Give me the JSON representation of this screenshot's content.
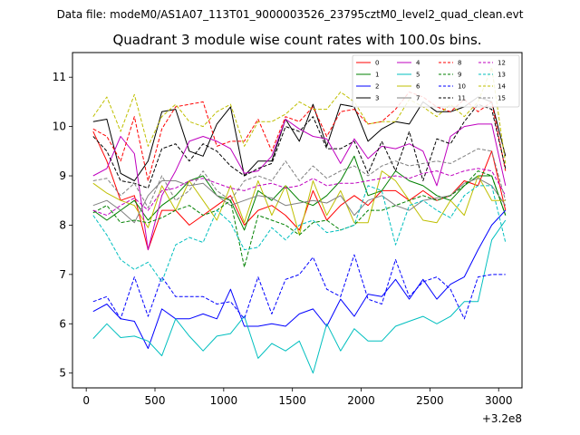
{
  "chart_data": {
    "type": "line",
    "suptitle": "Data file: modeM0/AS1A07_113T01_9000003526_23795cztM0_level2_quad_clean.evt",
    "title": "Quadrant 3 module wise count rates with 100.0s bins.",
    "xlabel": "",
    "ylabel": "",
    "x_offset_label": "+3.2e8",
    "xlim": [
      -100,
      3170
    ],
    "ylim": [
      4.7,
      11.5
    ],
    "xticks": [
      0,
      500,
      1000,
      1500,
      2000,
      2500,
      3000
    ],
    "yticks": [
      5,
      6,
      7,
      8,
      9,
      10,
      11
    ],
    "legend_position": "upper-right",
    "x": [
      50,
      150,
      250,
      350,
      450,
      550,
      650,
      750,
      850,
      950,
      1050,
      1150,
      1250,
      1350,
      1450,
      1550,
      1650,
      1750,
      1850,
      1950,
      2050,
      2150,
      2250,
      2350,
      2450,
      2550,
      2650,
      2750,
      2850,
      2950,
      3050
    ],
    "series": [
      {
        "name": "0",
        "color": "#ff0000",
        "dash": "solid",
        "values": [
          9.9,
          9.3,
          8.5,
          8.6,
          7.5,
          8.3,
          8.3,
          8.0,
          8.2,
          8.4,
          8.6,
          8.0,
          8.3,
          8.4,
          8.2,
          7.9,
          8.7,
          8.1,
          8.4,
          8.6,
          8.4,
          8.7,
          8.7,
          8.5,
          8.7,
          8.5,
          8.6,
          8.9,
          8.8,
          9.5,
          8.3
        ]
      },
      {
        "name": "1",
        "color": "#008000",
        "dash": "solid",
        "values": [
          8.3,
          8.1,
          8.3,
          8.5,
          8.1,
          8.4,
          8.6,
          8.9,
          9.0,
          8.6,
          8.5,
          7.9,
          8.7,
          8.5,
          8.8,
          8.5,
          8.4,
          8.6,
          8.9,
          9.4,
          8.6,
          8.7,
          9.1,
          8.9,
          8.8,
          8.6,
          8.5,
          8.8,
          9.0,
          9.0,
          8.2
        ]
      },
      {
        "name": "2",
        "color": "#0000ff",
        "dash": "solid",
        "values": [
          6.25,
          6.4,
          6.1,
          6.05,
          5.5,
          6.3,
          6.1,
          6.1,
          6.2,
          6.1,
          6.7,
          5.95,
          5.95,
          6.0,
          5.95,
          6.2,
          6.3,
          5.95,
          6.5,
          6.15,
          6.6,
          6.55,
          6.9,
          6.5,
          6.9,
          6.5,
          6.8,
          6.95,
          7.5,
          8.0,
          8.3
        ]
      },
      {
        "name": "3",
        "color": "#000000",
        "dash": "solid",
        "values": [
          10.1,
          10.15,
          9.05,
          8.9,
          9.3,
          10.3,
          10.35,
          9.5,
          9.4,
          10.05,
          10.4,
          9.0,
          9.3,
          9.3,
          10.15,
          9.7,
          10.45,
          9.6,
          10.45,
          10.4,
          9.7,
          9.95,
          10.1,
          10.05,
          10.5,
          10.3,
          10.3,
          10.4,
          10.6,
          10.5,
          9.4
        ]
      },
      {
        "name": "4",
        "color": "#bf00bf",
        "dash": "solid",
        "values": [
          9.0,
          9.15,
          9.8,
          9.45,
          7.5,
          8.6,
          9.1,
          9.7,
          9.8,
          9.7,
          9.55,
          9.05,
          9.1,
          9.4,
          10.15,
          9.95,
          9.8,
          9.75,
          9.25,
          9.75,
          9.35,
          9.6,
          9.55,
          9.65,
          9.5,
          8.8,
          9.8,
          10.0,
          10.05,
          10.05,
          8.8
        ]
      },
      {
        "name": "5",
        "color": "#00bfbf",
        "dash": "solid",
        "values": [
          5.7,
          6.0,
          5.72,
          5.75,
          5.65,
          5.35,
          6.1,
          5.75,
          5.45,
          5.75,
          5.8,
          6.15,
          5.3,
          5.6,
          5.45,
          5.65,
          5.0,
          6.0,
          5.45,
          5.9,
          5.65,
          5.65,
          5.95,
          6.05,
          6.15,
          6.0,
          6.15,
          6.45,
          6.45,
          7.7,
          8.1
        ]
      },
      {
        "name": "6",
        "color": "#bfbf00",
        "dash": "solid",
        "values": [
          8.85,
          8.65,
          8.5,
          8.4,
          7.95,
          8.8,
          8.3,
          8.9,
          8.5,
          8.1,
          8.8,
          8.05,
          8.9,
          8.2,
          8.8,
          7.8,
          8.9,
          8.2,
          8.7,
          8.05,
          8.05,
          9.1,
          8.9,
          8.5,
          8.1,
          8.05,
          8.5,
          8.2,
          9.0,
          8.5,
          8.5
        ]
      },
      {
        "name": "7",
        "color": "#808080",
        "dash": "solid",
        "values": [
          8.4,
          8.5,
          8.3,
          8.05,
          8.6,
          8.9,
          8.9,
          8.8,
          8.85,
          8.6,
          8.4,
          8.5,
          8.6,
          8.55,
          8.4,
          8.45,
          8.5,
          8.45,
          8.6,
          8.2,
          8.5,
          8.6,
          8.4,
          8.3,
          8.5,
          8.55,
          8.6,
          8.85,
          8.95,
          8.8,
          8.4
        ]
      },
      {
        "name": "8",
        "color": "#ff0000",
        "dash": "dashed",
        "values": [
          9.95,
          9.8,
          9.3,
          10.2,
          8.9,
          9.95,
          10.4,
          10.45,
          10.5,
          9.6,
          9.7,
          9.7,
          10.15,
          9.5,
          10.2,
          10.1,
          10.4,
          9.8,
          10.3,
          10.35,
          10.05,
          10.1,
          10.35,
          10.7,
          10.6,
          10.4,
          10.3,
          10.55,
          10.3,
          10.5,
          9.1
        ]
      },
      {
        "name": "9",
        "color": "#008000",
        "dash": "dashed",
        "values": [
          8.25,
          8.4,
          8.05,
          8.1,
          8.05,
          8.15,
          8.3,
          8.4,
          8.2,
          8.3,
          8.5,
          7.15,
          8.2,
          8.1,
          8.0,
          7.8,
          8.05,
          8.1,
          7.9,
          8.0,
          8.3,
          8.3,
          8.4,
          8.5,
          8.6,
          8.5,
          8.6,
          8.8,
          9.1,
          9.0,
          8.2
        ]
      },
      {
        "name": "10",
        "color": "#0000ff",
        "dash": "dashed",
        "values": [
          6.45,
          6.55,
          6.1,
          6.95,
          6.15,
          6.95,
          6.55,
          6.55,
          6.55,
          6.4,
          6.45,
          6.1,
          6.95,
          6.2,
          6.9,
          7.0,
          7.35,
          6.7,
          6.55,
          7.4,
          6.5,
          6.4,
          7.3,
          6.55,
          6.85,
          6.95,
          6.7,
          6.1,
          6.95,
          7.0,
          7.0
        ]
      },
      {
        "name": "11",
        "color": "#000000",
        "dash": "dashed",
        "values": [
          9.8,
          9.5,
          8.9,
          8.85,
          8.75,
          9.55,
          9.65,
          9.3,
          9.65,
          9.5,
          9.2,
          9.0,
          9.15,
          9.25,
          10.0,
          9.9,
          10.2,
          9.55,
          9.55,
          9.7,
          9.05,
          9.7,
          9.1,
          9.9,
          8.9,
          9.75,
          9.65,
          10.1,
          10.45,
          10.35,
          9.15
        ]
      },
      {
        "name": "12",
        "color": "#bf00bf",
        "dash": "dashed",
        "values": [
          8.3,
          8.2,
          8.4,
          8.55,
          8.3,
          8.7,
          8.75,
          8.9,
          8.95,
          8.85,
          8.75,
          8.7,
          8.8,
          8.85,
          8.75,
          8.8,
          8.95,
          8.8,
          8.85,
          8.85,
          8.9,
          8.95,
          9.0,
          8.95,
          9.05,
          9.1,
          9.0,
          9.1,
          9.15,
          9.1,
          8.6
        ]
      },
      {
        "name": "13",
        "color": "#00bfbf",
        "dash": "dashed",
        "values": [
          8.2,
          7.8,
          7.3,
          7.1,
          7.25,
          6.85,
          7.6,
          7.75,
          7.65,
          8.3,
          8.05,
          7.5,
          7.55,
          7.95,
          7.7,
          8.0,
          8.1,
          7.85,
          7.9,
          8.0,
          8.8,
          8.7,
          7.6,
          8.4,
          8.5,
          8.3,
          8.15,
          8.6,
          8.8,
          8.8,
          7.65
        ]
      },
      {
        "name": "14",
        "color": "#bfbf00",
        "dash": "dashed",
        "values": [
          10.2,
          10.6,
          9.9,
          10.65,
          9.6,
          10.2,
          10.45,
          10.1,
          10.0,
          10.3,
          10.45,
          9.6,
          10.1,
          10.1,
          10.25,
          10.5,
          10.35,
          10.35,
          10.7,
          10.5,
          10.05,
          10.1,
          10.1,
          10.55,
          10.4,
          10.2,
          10.45,
          10.2,
          10.5,
          11.2,
          9.25
        ]
      },
      {
        "name": "15",
        "color": "#808080",
        "dash": "dashed",
        "values": [
          8.9,
          8.95,
          8.6,
          8.85,
          8.35,
          9.0,
          8.5,
          8.7,
          9.1,
          8.7,
          8.5,
          8.9,
          9.0,
          8.9,
          9.3,
          8.9,
          9.2,
          8.95,
          9.1,
          9.2,
          9.0,
          9.2,
          9.3,
          9.2,
          9.25,
          9.3,
          9.25,
          9.4,
          9.55,
          9.5,
          8.5
        ]
      }
    ]
  }
}
